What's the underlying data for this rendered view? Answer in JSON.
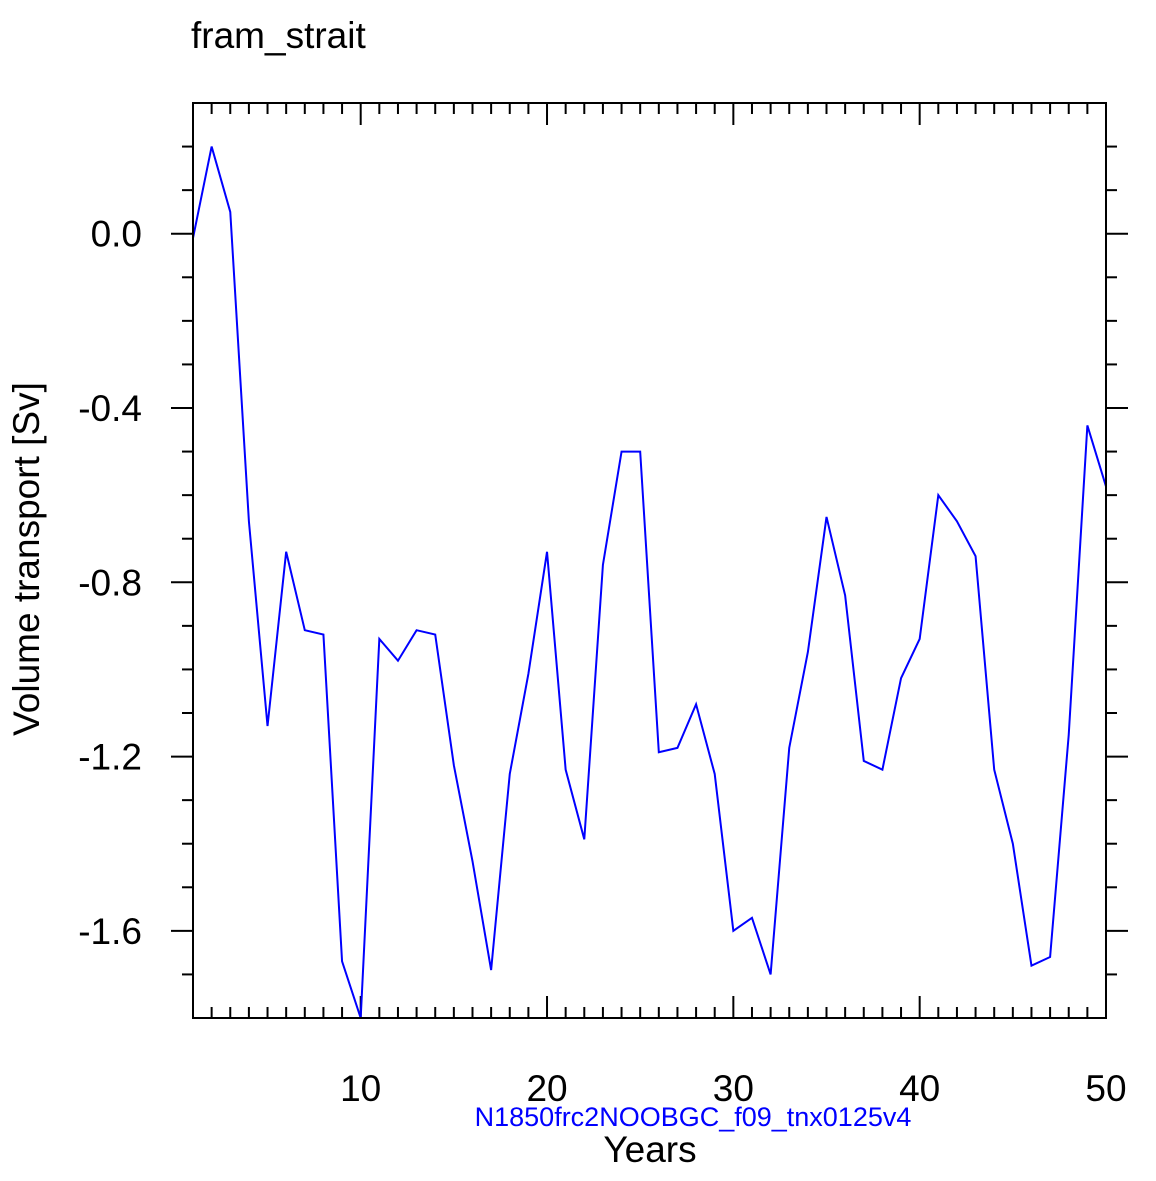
{
  "chart_data": {
    "type": "line",
    "title": "fram_strait",
    "xlabel": "Years",
    "ylabel": "Volume transport [Sv]",
    "subtitle": "N1850frc2NOOBGC_f09_tnx0125v4",
    "xlim": [
      1,
      50
    ],
    "ylim": [
      -1.8,
      0.3
    ],
    "x_ticks": [
      10,
      20,
      30,
      40,
      50
    ],
    "y_ticks": [
      0.0,
      -0.4,
      -0.8,
      -1.2,
      -1.6
    ],
    "x_tick_labels": [
      "10",
      "20",
      "30",
      "40",
      "50"
    ],
    "y_tick_labels": [
      "0.0",
      "-0.4",
      "-0.8",
      "-1.2",
      "-1.6"
    ],
    "grid": false,
    "series": [
      {
        "color": "#0000ff",
        "x": [
          1,
          2,
          3,
          4,
          5,
          6,
          7,
          8,
          9,
          10,
          11,
          12,
          13,
          14,
          15,
          16,
          17,
          18,
          19,
          20,
          21,
          22,
          23,
          24,
          25,
          26,
          27,
          28,
          29,
          30,
          31,
          32,
          33,
          34,
          35,
          36,
          37,
          38,
          39,
          40,
          41,
          42,
          43,
          44,
          45,
          46,
          47,
          48,
          49,
          50
        ],
        "values": [
          -0.01,
          0.2,
          0.05,
          -0.66,
          -1.13,
          -0.73,
          -0.91,
          -0.92,
          -1.67,
          -1.8,
          -0.93,
          -0.98,
          -0.91,
          -0.92,
          -1.22,
          -1.44,
          -1.69,
          -1.24,
          -1.01,
          -0.73,
          -1.23,
          -1.39,
          -0.76,
          -0.5,
          -0.5,
          -1.19,
          -1.18,
          -1.08,
          -1.24,
          -1.6,
          -1.57,
          -1.7,
          -1.18,
          -0.96,
          -0.65,
          -0.83,
          -1.21,
          -1.23,
          -1.02,
          -0.93,
          -0.6,
          -0.66,
          -0.74,
          -1.23,
          -1.4,
          -1.68,
          -1.66,
          -1.15,
          -0.44,
          -0.58
        ]
      }
    ]
  }
}
